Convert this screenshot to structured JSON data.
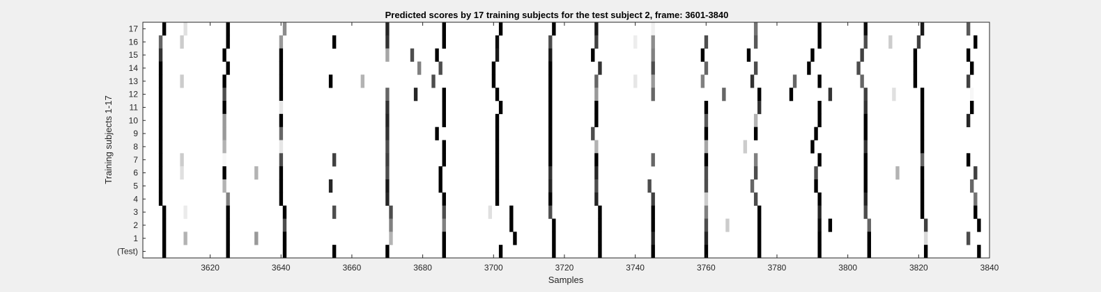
{
  "chart_data": {
    "type": "heatmap",
    "title": "Predicted scores by 17 training subjects for the test subject 2, frame: 3601-3840",
    "xlabel": "Samples",
    "ylabel": "Training subjects 1-17",
    "xlim": [
      3601,
      3840
    ],
    "xticks": [
      3620,
      3640,
      3660,
      3680,
      3700,
      3720,
      3740,
      3760,
      3780,
      3800,
      3820,
      3840
    ],
    "rows": [
      "17",
      "16",
      "15",
      "14",
      "13",
      "12",
      "11",
      "10",
      "9",
      "8",
      "7",
      "6",
      "5",
      "4",
      "3",
      "2",
      "1",
      "(Test)"
    ],
    "colormap": "gray (0 = white, 1 = black)",
    "grid": false,
    "legend": "none",
    "cells": [
      {
        "row": "17",
        "marks": [
          [
            3607,
            1
          ],
          [
            3613,
            0.12
          ],
          [
            3625,
            1
          ],
          [
            3641,
            0.45
          ],
          [
            3670,
            0.85
          ],
          [
            3686,
            1
          ],
          [
            3702,
            1
          ],
          [
            3717,
            1
          ],
          [
            3729,
            0.9
          ],
          [
            3745,
            0.06
          ],
          [
            3774,
            0.55
          ],
          [
            3792,
            1
          ],
          [
            3805,
            0.95
          ],
          [
            3821,
            0.9
          ],
          [
            3834,
            0.65
          ]
        ]
      },
      {
        "row": "16",
        "marks": [
          [
            3606,
            0.6
          ],
          [
            3612,
            0.2
          ],
          [
            3625,
            1
          ],
          [
            3640,
            0.4
          ],
          [
            3655,
            1
          ],
          [
            3670,
            0.8
          ],
          [
            3686,
            1
          ],
          [
            3701,
            0.95
          ],
          [
            3716,
            0.7
          ],
          [
            3729,
            0.75
          ],
          [
            3740,
            0.07
          ],
          [
            3745,
            0.45
          ],
          [
            3760,
            0.7
          ],
          [
            3774,
            0.65
          ],
          [
            3792,
            1
          ],
          [
            3805,
            0.7
          ],
          [
            3812,
            0.2
          ],
          [
            3820,
            0.75
          ],
          [
            3836,
            1
          ]
        ]
      },
      {
        "row": "15",
        "marks": [
          [
            3606,
            0.8
          ],
          [
            3624,
            1
          ],
          [
            3640,
            1
          ],
          [
            3670,
            0.35
          ],
          [
            3677,
            0.7
          ],
          [
            3684,
            1
          ],
          [
            3701,
            0.9
          ],
          [
            3716,
            0.9
          ],
          [
            3728,
            1
          ],
          [
            3745,
            0.5
          ],
          [
            3759,
            1
          ],
          [
            3772,
            1
          ],
          [
            3790,
            1
          ],
          [
            3804,
            0.75
          ],
          [
            3819,
            1
          ],
          [
            3834,
            1
          ]
        ]
      },
      {
        "row": "14",
        "marks": [
          [
            3606,
            1
          ],
          [
            3625,
            1
          ],
          [
            3640,
            1
          ],
          [
            3679,
            0.5
          ],
          [
            3685,
            0.7
          ],
          [
            3700,
            1
          ],
          [
            3716,
            1
          ],
          [
            3730,
            0.8
          ],
          [
            3745,
            0.7
          ],
          [
            3760,
            0.6
          ],
          [
            3774,
            0.7
          ],
          [
            3789,
            1
          ],
          [
            3803,
            0.7
          ],
          [
            3819,
            1
          ],
          [
            3835,
            1
          ]
        ]
      },
      {
        "row": "13",
        "marks": [
          [
            3606,
            1
          ],
          [
            3612,
            0.2
          ],
          [
            3624,
            1
          ],
          [
            3640,
            1
          ],
          [
            3654,
            1
          ],
          [
            3663,
            0.3
          ],
          [
            3683,
            0.7
          ],
          [
            3700,
            1
          ],
          [
            3716,
            1
          ],
          [
            3729,
            0.6
          ],
          [
            3740,
            0.1
          ],
          [
            3745,
            0.4
          ],
          [
            3759,
            0.5
          ],
          [
            3773,
            0.8
          ],
          [
            3785,
            0.6
          ],
          [
            3792,
            1
          ],
          [
            3804,
            0.6
          ],
          [
            3819,
            1
          ],
          [
            3834,
            0.75
          ]
        ]
      },
      {
        "row": "12",
        "marks": [
          [
            3606,
            1
          ],
          [
            3624,
            0.7
          ],
          [
            3640,
            1
          ],
          [
            3670,
            0.6
          ],
          [
            3678,
            0.85
          ],
          [
            3686,
            1
          ],
          [
            3701,
            1
          ],
          [
            3716,
            1
          ],
          [
            3729,
            0.4
          ],
          [
            3745,
            0.6
          ],
          [
            3765,
            0.6
          ],
          [
            3775,
            1
          ],
          [
            3784,
            1
          ],
          [
            3795,
            0.8
          ],
          [
            3805,
            0.75
          ],
          [
            3813,
            0.12
          ],
          [
            3821,
            1
          ],
          [
            3835,
            0.03
          ]
        ]
      },
      {
        "row": "11",
        "marks": [
          [
            3606,
            1
          ],
          [
            3624,
            1
          ],
          [
            3640,
            0.1
          ],
          [
            3670,
            0.8
          ],
          [
            3686,
            1
          ],
          [
            3702,
            1
          ],
          [
            3716,
            1
          ],
          [
            3729,
            1
          ],
          [
            3760,
            1
          ],
          [
            3775,
            0.8
          ],
          [
            3792,
            1
          ],
          [
            3805,
            0.8
          ],
          [
            3821,
            1
          ],
          [
            3835,
            1
          ]
        ]
      },
      {
        "row": "10",
        "marks": [
          [
            3606,
            1
          ],
          [
            3624,
            0.4
          ],
          [
            3640,
            1
          ],
          [
            3670,
            0.85
          ],
          [
            3686,
            1
          ],
          [
            3701,
            1
          ],
          [
            3716,
            1
          ],
          [
            3729,
            1
          ],
          [
            3760,
            0.65
          ],
          [
            3774,
            0.3
          ],
          [
            3792,
            1
          ],
          [
            3805,
            1
          ],
          [
            3821,
            1
          ],
          [
            3834,
            0.85
          ]
        ]
      },
      {
        "row": "9",
        "marks": [
          [
            3606,
            1
          ],
          [
            3624,
            0.4
          ],
          [
            3640,
            0.6
          ],
          [
            3670,
            0.8
          ],
          [
            3684,
            1
          ],
          [
            3701,
            1
          ],
          [
            3716,
            1
          ],
          [
            3728,
            0.7
          ],
          [
            3760,
            1
          ],
          [
            3774,
            1
          ],
          [
            3791,
            1
          ],
          [
            3805,
            1
          ],
          [
            3821,
            1
          ]
        ]
      },
      {
        "row": "8",
        "marks": [
          [
            3606,
            1
          ],
          [
            3624,
            0.3
          ],
          [
            3640,
            0.1
          ],
          [
            3670,
            0.7
          ],
          [
            3686,
            1
          ],
          [
            3701,
            1
          ],
          [
            3716,
            1
          ],
          [
            3729,
            0.3
          ],
          [
            3760,
            0.35
          ],
          [
            3771,
            0.2
          ],
          [
            3790,
            1
          ],
          [
            3805,
            0.8
          ],
          [
            3821,
            1
          ]
        ]
      },
      {
        "row": "7",
        "marks": [
          [
            3606,
            1
          ],
          [
            3612,
            0.2
          ],
          [
            3624,
            0.03
          ],
          [
            3640,
            0.7
          ],
          [
            3655,
            0.75
          ],
          [
            3670,
            0.75
          ],
          [
            3686,
            1
          ],
          [
            3701,
            1
          ],
          [
            3716,
            1
          ],
          [
            3729,
            1
          ],
          [
            3745,
            0.6
          ],
          [
            3760,
            1
          ],
          [
            3774,
            0.5
          ],
          [
            3792,
            1
          ],
          [
            3805,
            1
          ],
          [
            3821,
            0.6
          ],
          [
            3834,
            1
          ]
        ]
      },
      {
        "row": "6",
        "marks": [
          [
            3606,
            1
          ],
          [
            3612,
            0.12
          ],
          [
            3624,
            1
          ],
          [
            3633,
            0.3
          ],
          [
            3640,
            1
          ],
          [
            3670,
            0.7
          ],
          [
            3685,
            1
          ],
          [
            3701,
            1
          ],
          [
            3716,
            0.8
          ],
          [
            3729,
            0.85
          ],
          [
            3760,
            0.7
          ],
          [
            3774,
            0.7
          ],
          [
            3791,
            0.7
          ],
          [
            3805,
            1
          ],
          [
            3814,
            0.3
          ],
          [
            3821,
            1
          ],
          [
            3836,
            0.75
          ]
        ]
      },
      {
        "row": "5",
        "marks": [
          [
            3606,
            1
          ],
          [
            3624,
            0.3
          ],
          [
            3640,
            1
          ],
          [
            3654,
            0.85
          ],
          [
            3670,
            0.9
          ],
          [
            3685,
            1
          ],
          [
            3701,
            1
          ],
          [
            3716,
            0.85
          ],
          [
            3729,
            0.7
          ],
          [
            3744,
            0.7
          ],
          [
            3760,
            0.7
          ],
          [
            3773,
            0.6
          ],
          [
            3791,
            1
          ],
          [
            3805,
            1
          ],
          [
            3821,
            1
          ],
          [
            3835,
            0.6
          ]
        ]
      },
      {
        "row": "4",
        "marks": [
          [
            3606,
            1
          ],
          [
            3625,
            0.5
          ],
          [
            3640,
            1
          ],
          [
            3670,
            0.85
          ],
          [
            3686,
            1
          ],
          [
            3701,
            1
          ],
          [
            3716,
            1
          ],
          [
            3729,
            0.85
          ],
          [
            3745,
            0.75
          ],
          [
            3760,
            0.2
          ],
          [
            3774,
            0.7
          ],
          [
            3792,
            1
          ],
          [
            3805,
            0.85
          ],
          [
            3821,
            1
          ],
          [
            3836,
            0.55
          ]
        ]
      },
      {
        "row": "3",
        "marks": [
          [
            3607,
            1
          ],
          [
            3613,
            0.08
          ],
          [
            3625,
            1
          ],
          [
            3641,
            1
          ],
          [
            3655,
            0.7
          ],
          [
            3671,
            0.7
          ],
          [
            3686,
            0.7
          ],
          [
            3699,
            0.12
          ],
          [
            3705,
            1
          ],
          [
            3716,
            0.7
          ],
          [
            3730,
            1
          ],
          [
            3745,
            1
          ],
          [
            3760,
            0.5
          ],
          [
            3775,
            1
          ],
          [
            3792,
            0.85
          ],
          [
            3805,
            0.7
          ],
          [
            3821,
            1
          ],
          [
            3836,
            1
          ]
        ]
      },
      {
        "row": "2",
        "marks": [
          [
            3607,
            1
          ],
          [
            3625,
            1
          ],
          [
            3641,
            0.7
          ],
          [
            3671,
            0.5
          ],
          [
            3686,
            0.5
          ],
          [
            3705,
            1
          ],
          [
            3717,
            1
          ],
          [
            3730,
            1
          ],
          [
            3745,
            1
          ],
          [
            3760,
            0.7
          ],
          [
            3766,
            0.2
          ],
          [
            3775,
            1
          ],
          [
            3792,
            0.95
          ],
          [
            3795,
            1
          ],
          [
            3806,
            0.6
          ],
          [
            3822,
            0.75
          ],
          [
            3837,
            1
          ]
        ]
      },
      {
        "row": "1",
        "marks": [
          [
            3607,
            1
          ],
          [
            3613,
            0.3
          ],
          [
            3625,
            1
          ],
          [
            3633,
            0.4
          ],
          [
            3641,
            1
          ],
          [
            3671,
            0.3
          ],
          [
            3686,
            1
          ],
          [
            3706,
            1
          ],
          [
            3717,
            1
          ],
          [
            3730,
            1
          ],
          [
            3745,
            0.85
          ],
          [
            3760,
            0.85
          ],
          [
            3775,
            1
          ],
          [
            3792,
            1
          ],
          [
            3806,
            1
          ],
          [
            3822,
            0.15
          ],
          [
            3834,
            0.7
          ]
        ]
      },
      {
        "row": "(Test)",
        "marks": [
          [
            3607,
            1
          ],
          [
            3625,
            1
          ],
          [
            3641,
            1
          ],
          [
            3655,
            1
          ],
          [
            3670,
            1
          ],
          [
            3686,
            1
          ],
          [
            3702,
            1
          ],
          [
            3717,
            1
          ],
          [
            3730,
            1
          ],
          [
            3745,
            1
          ],
          [
            3760,
            1
          ],
          [
            3775,
            1
          ],
          [
            3792,
            1
          ],
          [
            3806,
            1
          ],
          [
            3822,
            1
          ],
          [
            3837,
            1
          ]
        ]
      }
    ]
  }
}
